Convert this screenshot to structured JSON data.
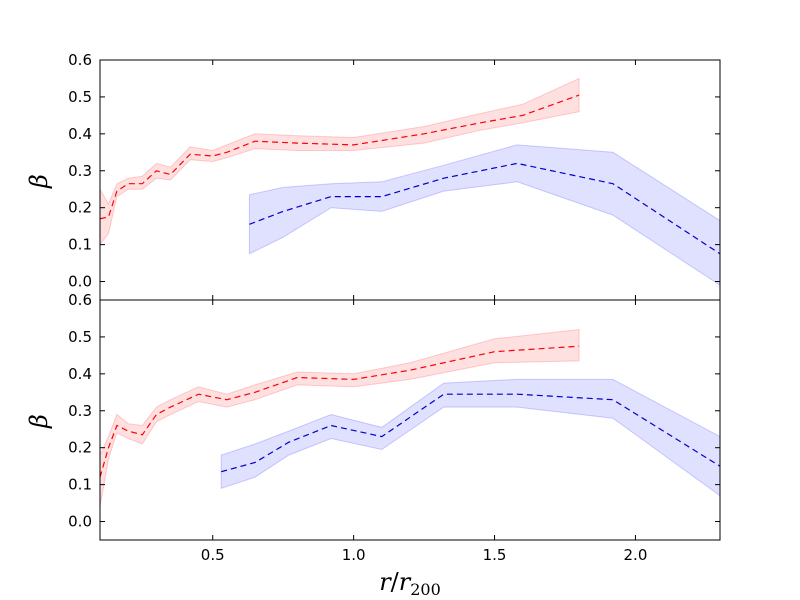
{
  "chart_data": [
    {
      "type": "line",
      "panel": "top",
      "title": "",
      "xlabel": "",
      "ylabel": "β",
      "xlim": [
        0.1,
        2.3
      ],
      "ylim": [
        -0.05,
        0.6
      ],
      "yticks": [
        "0.0",
        "0.1",
        "0.2",
        "0.3",
        "0.4",
        "0.5",
        "0.6"
      ],
      "grid": false,
      "series": [
        {
          "name": "red",
          "color": "#ff0000",
          "band_color": "#ff0000",
          "x": [
            0.1,
            0.13,
            0.16,
            0.2,
            0.25,
            0.3,
            0.35,
            0.42,
            0.5,
            0.55,
            0.65,
            0.8,
            1.0,
            1.25,
            1.45,
            1.6,
            1.8
          ],
          "y": [
            0.17,
            0.175,
            0.245,
            0.265,
            0.265,
            0.3,
            0.29,
            0.345,
            0.34,
            0.35,
            0.38,
            0.375,
            0.37,
            0.4,
            0.43,
            0.45,
            0.505
          ],
          "lower": [
            0.1,
            0.13,
            0.23,
            0.25,
            0.25,
            0.28,
            0.275,
            0.33,
            0.325,
            0.335,
            0.36,
            0.355,
            0.355,
            0.375,
            0.41,
            0.43,
            0.46
          ],
          "upper": [
            0.25,
            0.21,
            0.265,
            0.28,
            0.285,
            0.32,
            0.31,
            0.365,
            0.355,
            0.37,
            0.4,
            0.395,
            0.39,
            0.42,
            0.455,
            0.48,
            0.55
          ]
        },
        {
          "name": "blue",
          "color": "#0000cc",
          "band_color": "#0000ff",
          "x": [
            0.63,
            0.75,
            0.92,
            1.1,
            1.32,
            1.58,
            1.92,
            2.3
          ],
          "y": [
            0.155,
            0.19,
            0.23,
            0.23,
            0.28,
            0.32,
            0.265,
            0.075
          ],
          "lower": [
            0.075,
            0.12,
            0.2,
            0.19,
            0.245,
            0.27,
            0.18,
            -0.01
          ],
          "upper": [
            0.235,
            0.255,
            0.265,
            0.27,
            0.315,
            0.37,
            0.35,
            0.165
          ]
        }
      ]
    },
    {
      "type": "line",
      "panel": "bottom",
      "title": "",
      "xlabel_main": "r",
      "xlabel_sep": "/",
      "xlabel_base": "r",
      "xlabel_sub": "200",
      "ylabel": "β",
      "xlim": [
        0.1,
        2.3
      ],
      "ylim": [
        -0.05,
        0.6
      ],
      "xticks": [
        "0.5",
        "1.0",
        "1.5",
        "2.0"
      ],
      "yticks": [
        "0.0",
        "0.1",
        "0.2",
        "0.3",
        "0.4",
        "0.5",
        "0.6"
      ],
      "grid": false,
      "series": [
        {
          "name": "red",
          "color": "#ff0000",
          "band_color": "#ff0000",
          "x": [
            0.1,
            0.13,
            0.16,
            0.2,
            0.25,
            0.3,
            0.35,
            0.45,
            0.55,
            0.65,
            0.8,
            1.0,
            1.2,
            1.5,
            1.8
          ],
          "y": [
            0.12,
            0.2,
            0.26,
            0.245,
            0.235,
            0.29,
            0.31,
            0.345,
            0.33,
            0.35,
            0.39,
            0.385,
            0.41,
            0.46,
            0.475
          ],
          "lower": [
            0.04,
            0.17,
            0.24,
            0.225,
            0.21,
            0.27,
            0.29,
            0.325,
            0.31,
            0.33,
            0.37,
            0.365,
            0.385,
            0.43,
            0.435
          ],
          "upper": [
            0.18,
            0.23,
            0.29,
            0.265,
            0.26,
            0.31,
            0.33,
            0.365,
            0.345,
            0.37,
            0.405,
            0.4,
            0.43,
            0.495,
            0.52
          ]
        },
        {
          "name": "blue",
          "color": "#0000cc",
          "band_color": "#0000ff",
          "x": [
            0.53,
            0.65,
            0.77,
            0.92,
            1.1,
            1.32,
            1.58,
            1.92,
            2.3
          ],
          "y": [
            0.135,
            0.16,
            0.215,
            0.26,
            0.23,
            0.345,
            0.345,
            0.33,
            0.15
          ],
          "lower": [
            0.09,
            0.12,
            0.18,
            0.225,
            0.195,
            0.31,
            0.31,
            0.28,
            0.07
          ],
          "upper": [
            0.18,
            0.21,
            0.245,
            0.29,
            0.255,
            0.375,
            0.385,
            0.385,
            0.23
          ]
        }
      ]
    }
  ]
}
